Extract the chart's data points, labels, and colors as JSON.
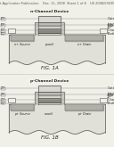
{
  "bg_color": "#f0efe8",
  "fig_color": "#f0efe8",
  "header_text": "Patent Application Publication    Dec. 11, 2008  Sheet 1 of 8    US 2008/0303099 A1",
  "header_fontsize": 2.5,
  "fig1_label": "FIG. 1A",
  "fig2_label": "FIG. 1B",
  "fig1_title": "n-Channel Device",
  "fig2_title": "p-Channel Device",
  "fig1_right_labels": [
    "Gate",
    "ONO Top Dielectric",
    "Charge Storage Layer",
    "Bottom Oxide"
  ],
  "fig2_right_labels": [
    "Gate",
    "ONO Top Dielectric",
    "Charge Storage Layer",
    "Bottom Oxide"
  ],
  "fig1_bottom_labels": [
    "n+ Source",
    "p-well",
    "n+ Drain"
  ],
  "fig2_bottom_labels": [
    "p+ Source",
    "n-well",
    "p+ Drain"
  ],
  "line_color": "#555555",
  "text_color": "#222222"
}
